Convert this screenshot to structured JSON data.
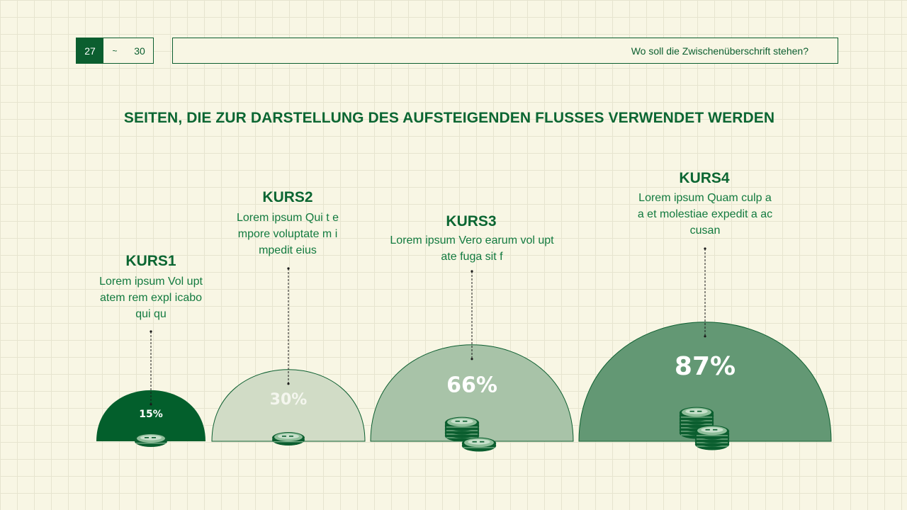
{
  "nav": {
    "current_page": "27",
    "separator": "~",
    "total_pages": "30"
  },
  "header": {
    "subheading": "Wo soll die Zwischenüberschrift stehen?"
  },
  "title": "SEITEN, DIE ZUR DARSTELLUNG DES AUFSTEIGENDEN FLUSSES VERWENDET WERDEN",
  "courses": [
    {
      "name": "KURS1",
      "description": "Lorem ipsum Vol uptatem rem expl icabo qui qu",
      "percent_label": "15%",
      "value": 15,
      "fill": "#035f2c",
      "label_color": "#ffffff",
      "coin_icon": "single-coin-icon"
    },
    {
      "name": "KURS2",
      "description": "Lorem ipsum Qui t empore voluptate m impedit eius",
      "percent_label": "30%",
      "value": 30,
      "fill": "#d1dcc6",
      "label_color": "#f4f6ee",
      "coin_icon": "single-coin-icon"
    },
    {
      "name": "KURS3",
      "description": "Lorem ipsum Vero earum vol uptate fuga sit f",
      "percent_label": "66%",
      "value": 66,
      "fill": "#a8c3a8",
      "label_color": "#ffffff",
      "coin_icon": "coin-stack-icon"
    },
    {
      "name": "KURS4",
      "description": "Lorem ipsum Quam culp a a et molestiae expedit a accusan",
      "percent_label": "87%",
      "value": 87,
      "fill": "#639874",
      "label_color": "#ffffff",
      "coin_icon": "coin-stacks-icon"
    }
  ],
  "colors": {
    "accent": "#0b5e2f",
    "background": "#f8f6e4",
    "grid": "#e6e4cf",
    "coin_light": "#8fbe9a"
  }
}
